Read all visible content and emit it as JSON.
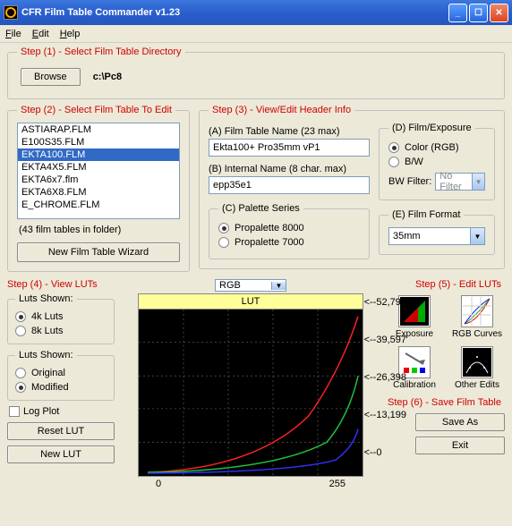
{
  "window": {
    "title": "CFR Film Table Commander v1.23"
  },
  "menu": {
    "file": "File",
    "edit": "Edit",
    "help": "Help"
  },
  "step1": {
    "legend": "Step (1) - Select Film Table Directory",
    "browse": "Browse",
    "path": "c:\\Pc8"
  },
  "step2": {
    "legend": "Step (2) - Select Film Table To Edit",
    "items": [
      "ASTIARAP.FLM",
      "E100S35.FLM",
      "EKTA100.FLM",
      "EKTA4X5.FLM",
      "EKTA6x7.flm",
      "EKTA6X8.FLM",
      "E_CHROME.FLM"
    ],
    "selectedIndex": 2,
    "counter": "(43 film tables in folder)",
    "wizard": "New Film Table Wizard"
  },
  "step3": {
    "legend": "Step (3) - View/Edit Header Info",
    "aLabel": "(A) Film Table Name (23 max)",
    "aValue": "Ekta100+ Pro35mm vP1",
    "bLabel": "(B) Internal Name (8 char. max)",
    "bValue": "epp35e1",
    "cLegend": "(C) Palette Series",
    "c1": "Propalette 8000",
    "c2": "Propalette 7000",
    "dLegend": "(D) Film/Exposure",
    "d1": "Color (RGB)",
    "d2": "B/W",
    "bwFilterLabel": "BW Filter:",
    "bwFilterValue": "No Filter",
    "eLegend": "(E) Film Format",
    "eValue": "35mm"
  },
  "step4": {
    "legend": "Step (4) - View LUTs",
    "shown1Legend": "Luts Shown:",
    "shown1a": "4k Luts",
    "shown1b": "8k Luts",
    "shown2Legend": "Luts Shown:",
    "shown2a": "Original",
    "shown2b": "Modified",
    "logPlot": "Log Plot",
    "reset": "Reset LUT",
    "new": "New LUT"
  },
  "chart": {
    "combo": "RGB",
    "header": "LUT",
    "xmin": "0",
    "xmax": "255",
    "y0": "<--0",
    "y1": "<--13,199",
    "y2": "<--26,398",
    "y3": "<--39,597",
    "y4": "<--52,796",
    "colors": {
      "r": "#ff2020",
      "g": "#20c040",
      "b": "#3030ff"
    }
  },
  "step5": {
    "legend": "Step (5) - Edit LUTs",
    "exposure": "Exposure",
    "rgbcurves": "RGB Curves",
    "calibration": "Calibration",
    "other": "Other Edits"
  },
  "step6": {
    "legend": "Step (6) - Save Film Table",
    "save": "Save As",
    "exit": "Exit"
  }
}
